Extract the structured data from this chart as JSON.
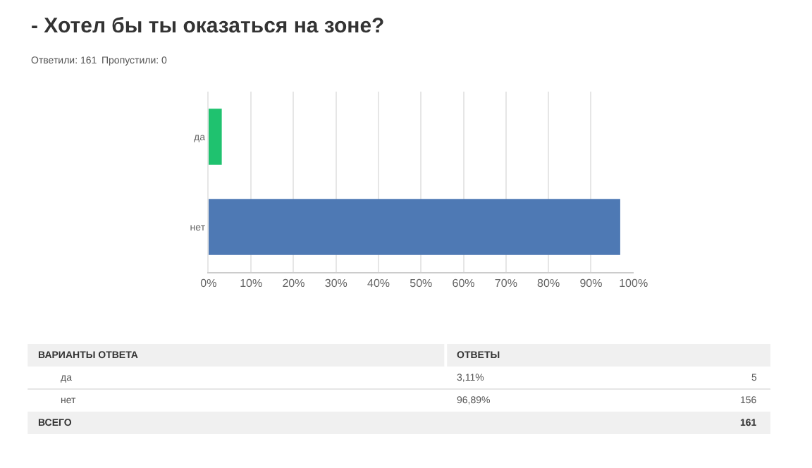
{
  "chart_data": {
    "type": "bar",
    "orientation": "horizontal",
    "title": "- Хотел бы ты оказаться на зоне?",
    "categories": [
      "да",
      "нет"
    ],
    "values": [
      3.11,
      96.89
    ],
    "colors": [
      "#1fc26f",
      "#4e79b4"
    ],
    "xlim": [
      0,
      100
    ],
    "xticks": [
      {
        "value": 0,
        "label": "0%"
      },
      {
        "value": 10,
        "label": "10%"
      },
      {
        "value": 20,
        "label": "20%"
      },
      {
        "value": 30,
        "label": "30%"
      },
      {
        "value": 40,
        "label": "40%"
      },
      {
        "value": 50,
        "label": "50%"
      },
      {
        "value": 60,
        "label": "60%"
      },
      {
        "value": 70,
        "label": "70%"
      },
      {
        "value": 80,
        "label": "80%"
      },
      {
        "value": 90,
        "label": "90%"
      },
      {
        "value": 100,
        "label": "100%"
      }
    ],
    "grid": "x",
    "annotations": [
      "Ответили: 161",
      "Пропустили: 0",
      "ВАРИАНТЫ ОТВЕТА",
      "ОТВЕТЫ",
      "3,11%",
      "5",
      "96,89%",
      "156",
      "ВСЕГО",
      "161"
    ]
  }
}
